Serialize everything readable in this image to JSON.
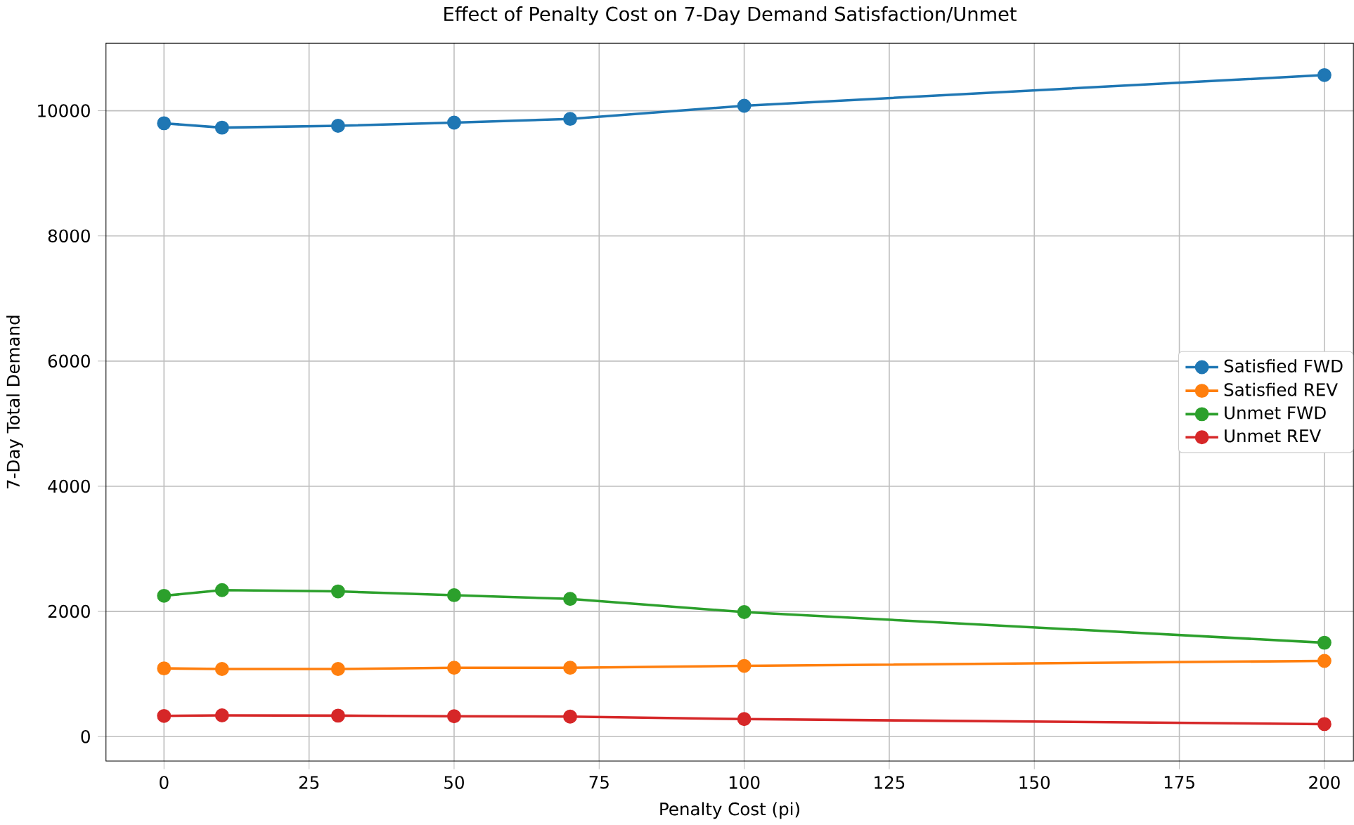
{
  "chart_data": {
    "type": "line",
    "title": "Effect of Penalty Cost on 7-Day Demand Satisfaction/Unmet",
    "xlabel": "Penalty Cost (pi)",
    "ylabel": "7-Day Total Demand",
    "x": [
      0,
      10,
      30,
      50,
      70,
      100,
      200
    ],
    "series": [
      {
        "name": "Satisfied FWD",
        "color": "#1f77b4",
        "values": [
          9800,
          9730,
          9760,
          9810,
          9870,
          10080,
          10570
        ]
      },
      {
        "name": "Satisfied REV",
        "color": "#ff7f0e",
        "values": [
          1090,
          1080,
          1080,
          1100,
          1100,
          1130,
          1210
        ]
      },
      {
        "name": "Unmet FWD",
        "color": "#2ca02c",
        "values": [
          2250,
          2340,
          2320,
          2260,
          2200,
          1990,
          1500
        ]
      },
      {
        "name": "Unmet REV",
        "color": "#d62728",
        "values": [
          330,
          340,
          335,
          325,
          320,
          280,
          200
        ]
      }
    ],
    "xlim": [
      -10,
      205
    ],
    "ylim": [
      -390,
      11080
    ],
    "xticks": [
      0,
      25,
      50,
      75,
      100,
      125,
      150,
      175,
      200
    ],
    "yticks": [
      0,
      2000,
      4000,
      6000,
      8000,
      10000
    ],
    "grid": true,
    "legend": "right",
    "marker": "circle",
    "line_style": "solid"
  }
}
